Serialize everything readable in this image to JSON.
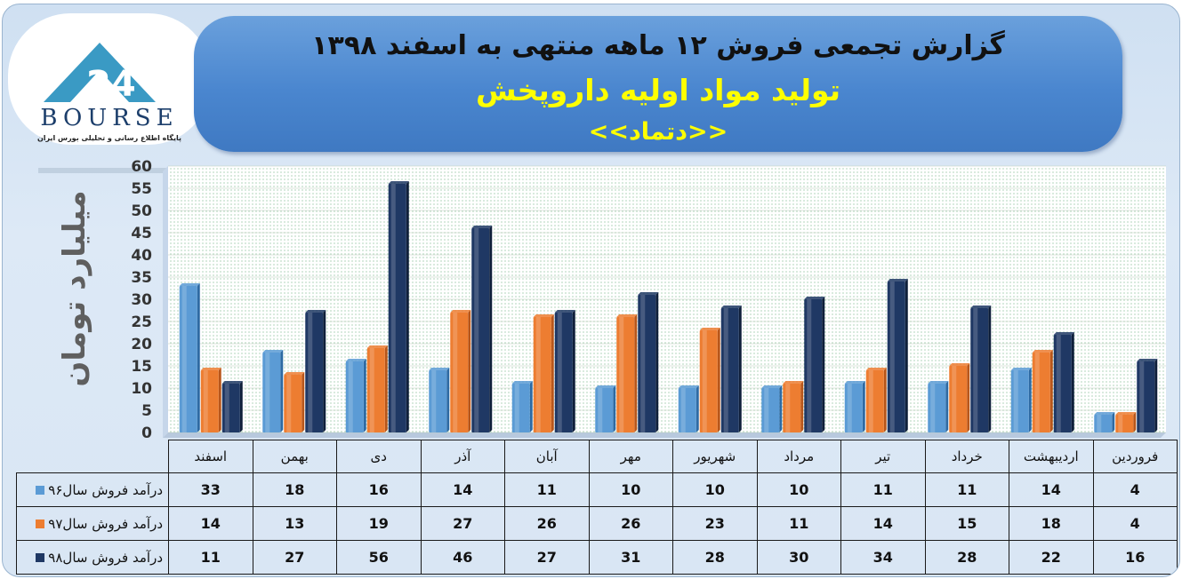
{
  "logo": {
    "brand": "BOURSE",
    "number": "24",
    "tagline": "پایگاه اطلاع رسانی و تحلیلی بورس ایران"
  },
  "header": {
    "title": "گزارش تجمعی فروش  ۱۲ ماهه منتهی به اسفند ۱۳۹۸",
    "company": "تولید مواد اولیه داروپخش",
    "symbol": "<<دتماد>>"
  },
  "colors": {
    "series96": "#5b9bd5",
    "series97": "#ed7d31",
    "series98": "#1f3864",
    "title_text": "#111111",
    "highlight_text": "#ffff00",
    "banner": "#4a86cf"
  },
  "chart_data": {
    "type": "bar",
    "title": "",
    "xlabel": "",
    "ylabel": "میلیارد تومان",
    "ylim": [
      0,
      60
    ],
    "yticks": [
      0,
      5,
      10,
      15,
      20,
      25,
      30,
      35,
      40,
      45,
      50,
      55,
      60
    ],
    "grid": true,
    "legend": "data-table",
    "categories": [
      "فروردین",
      "اردیبهشت",
      "خرداد",
      "تیر",
      "مرداد",
      "شهریور",
      "مهر",
      "آبان",
      "آذر",
      "دی",
      "بهمن",
      "اسفند"
    ],
    "series": [
      {
        "name": "درآمد فروش سال۹۶",
        "values": [
          4,
          14,
          11,
          11,
          10,
          10,
          10,
          11,
          14,
          16,
          18,
          33
        ]
      },
      {
        "name": "درآمد فروش سال۹۷",
        "values": [
          4,
          18,
          15,
          14,
          11,
          23,
          26,
          26,
          27,
          19,
          13,
          14
        ]
      },
      {
        "name": "درآمد فروش سال۹۸",
        "values": [
          16,
          22,
          28,
          34,
          30,
          28,
          31,
          27,
          46,
          56,
          27,
          11
        ]
      }
    ]
  }
}
